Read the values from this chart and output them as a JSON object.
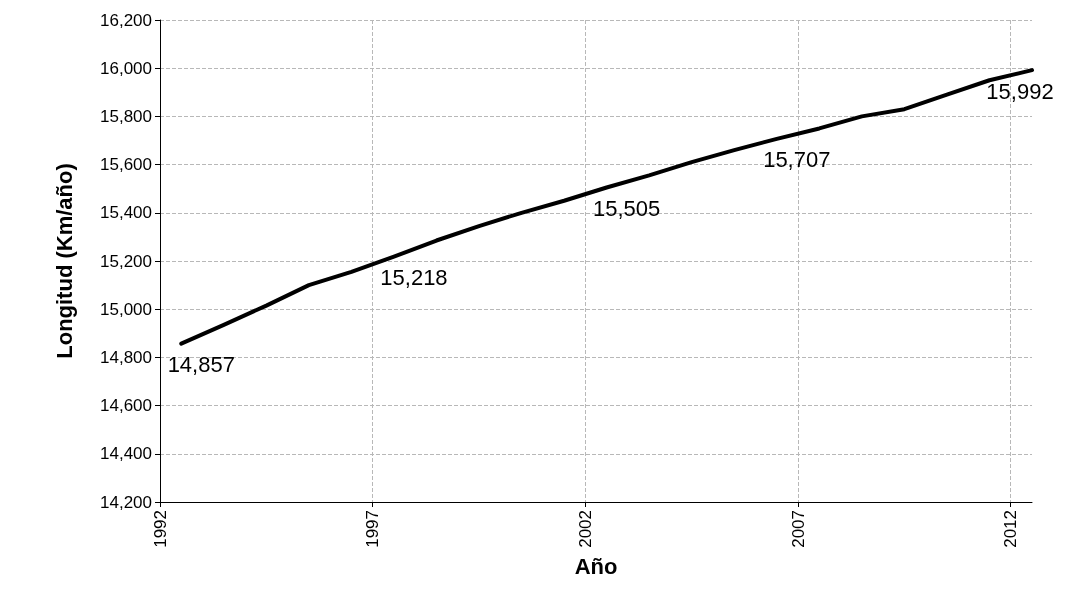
{
  "chart_data": {
    "type": "line",
    "xlabel": "Año",
    "ylabel": "Longitud (Km/año)",
    "x": [
      1992.5,
      1993.5,
      1994.5,
      1995.5,
      1996.5,
      1997.5,
      1998.5,
      1999.5,
      2000.5,
      2001.5,
      2002.5,
      2003.5,
      2004.5,
      2005.5,
      2006.5,
      2007.5,
      2008.5,
      2009.5,
      2010.5,
      2011.5,
      2012.5
    ],
    "series": [
      {
        "color": "#000000",
        "values": [
          14857,
          14935,
          15015,
          15100,
          15155,
          15218,
          15285,
          15345,
          15400,
          15450,
          15505,
          15555,
          15610,
          15660,
          15707,
          15750,
          15800,
          15830,
          15890,
          15950,
          15992
        ],
        "value_labels": [
          "14,857",
          null,
          null,
          null,
          null,
          "15,218",
          null,
          null,
          null,
          null,
          "15,505",
          null,
          null,
          null,
          "15,707",
          null,
          null,
          null,
          null,
          null,
          "15,992"
        ]
      }
    ],
    "xlim": [
      1992,
      2012.5
    ],
    "xticks": [
      1992,
      1997,
      2002,
      2007,
      2012
    ],
    "ylim": [
      14200,
      16200
    ],
    "yticks": [
      {
        "value": 14200,
        "label": "14,200"
      },
      {
        "value": 14400,
        "label": "14,400"
      },
      {
        "value": 14600,
        "label": "14,600"
      },
      {
        "value": 14800,
        "label": "14,800"
      },
      {
        "value": 15000,
        "label": "15,000"
      },
      {
        "value": 15200,
        "label": "15,200"
      },
      {
        "value": 15400,
        "label": "15,400"
      },
      {
        "value": 15600,
        "label": "15,600"
      },
      {
        "value": 15800,
        "label": "15,800"
      },
      {
        "value": 16000,
        "label": "16,000"
      },
      {
        "value": 16200,
        "label": "16,200"
      }
    ],
    "grid": true,
    "marker": "none",
    "line_style": "solid"
  }
}
